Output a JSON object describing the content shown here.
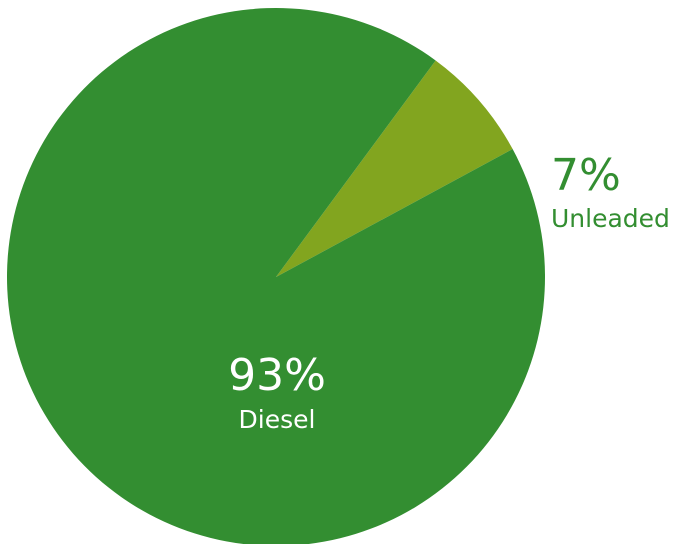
{
  "chart_data": {
    "type": "pie",
    "title": "",
    "slices": [
      {
        "label": "Unleaded",
        "value": 7,
        "value_label": "7%",
        "color": "#82a51f",
        "label_position": "outside",
        "text_color": "#338e31"
      },
      {
        "label": "Diesel",
        "value": 93,
        "value_label": "93%",
        "color": "#338e31",
        "label_position": "inside",
        "text_color": "#ffffff"
      }
    ],
    "legend": "none"
  }
}
